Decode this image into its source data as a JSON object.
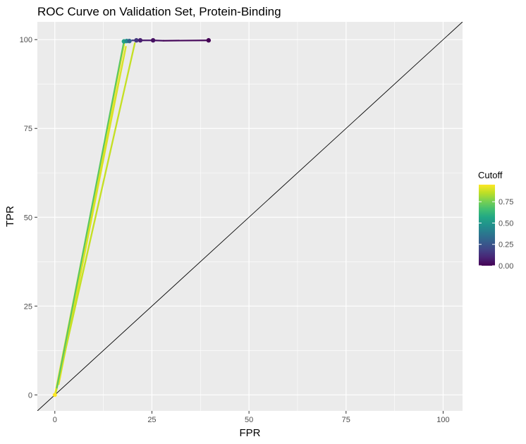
{
  "chart_data": {
    "type": "line",
    "title": "ROC Curve on Validation Set, Protein-Binding",
    "xlabel": "FPR",
    "ylabel": "TPR",
    "xlim": [
      -4.5,
      105
    ],
    "ylim": [
      -4.5,
      105
    ],
    "xticks": [
      0,
      25,
      50,
      75,
      100
    ],
    "yticks": [
      0,
      25,
      50,
      75,
      100
    ],
    "xtick_labels": [
      "0",
      "25",
      "50",
      "75",
      "100"
    ],
    "ytick_labels": [
      "0",
      "25",
      "50",
      "75",
      "100"
    ],
    "grid": true,
    "panel_background": "#ebebeb",
    "reference_line": {
      "from": [
        -4.5,
        -4.5
      ],
      "to": [
        105,
        105
      ],
      "color": "#000000"
    },
    "legend": {
      "title": "Cutoff",
      "position": "right",
      "range": [
        0,
        0.95
      ],
      "ticks": [
        0.0,
        0.25,
        0.5,
        0.75
      ],
      "tick_labels": [
        "0.00",
        "0.25",
        "0.50",
        "0.75"
      ],
      "colormap": "viridis"
    },
    "series": [
      {
        "points": [
          {
            "x": 0,
            "y": 0,
            "cutoff": 0.95
          },
          {
            "x": 18.0,
            "y": 99.5,
            "cutoff": 0.93
          },
          {
            "x": 1.0,
            "y": 3.0,
            "cutoff": 0.92
          },
          {
            "x": 18.3,
            "y": 98.0,
            "cutoff": 0.9
          },
          {
            "x": 0.3,
            "y": 0.8,
            "cutoff": 0.89
          },
          {
            "x": 20.6,
            "y": 99.0,
            "cutoff": 0.87
          },
          {
            "x": 0.5,
            "y": 2.0,
            "cutoff": 0.86
          },
          {
            "x": 17.8,
            "y": 99.5,
            "cutoff": 0.55
          },
          {
            "x": 18.5,
            "y": 99.6,
            "cutoff": 0.45
          },
          {
            "x": 19.0,
            "y": 99.6,
            "cutoff": 0.3
          },
          {
            "x": 20.0,
            "y": 99.8,
            "cutoff": 0.2
          },
          {
            "x": 21.2,
            "y": 99.8,
            "cutoff": 0.12
          },
          {
            "x": 22.0,
            "y": 99.8,
            "cutoff": 0.08
          },
          {
            "x": 25.3,
            "y": 99.8,
            "cutoff": 0.04
          },
          {
            "x": 28.0,
            "y": 99.7,
            "cutoff": 0.03
          },
          {
            "x": 39.6,
            "y": 99.8,
            "cutoff": 0.0
          }
        ],
        "markers": [
          {
            "x": 17.8,
            "y": 99.5,
            "cutoff": 0.55
          },
          {
            "x": 18.5,
            "y": 99.6,
            "cutoff": 0.45
          },
          {
            "x": 19.2,
            "y": 99.6,
            "cutoff": 0.3
          },
          {
            "x": 21.0,
            "y": 99.8,
            "cutoff": 0.15
          },
          {
            "x": 22.0,
            "y": 99.8,
            "cutoff": 0.08
          },
          {
            "x": 25.3,
            "y": 99.8,
            "cutoff": 0.04
          },
          {
            "x": 39.6,
            "y": 99.8,
            "cutoff": 0.0
          }
        ]
      }
    ]
  }
}
